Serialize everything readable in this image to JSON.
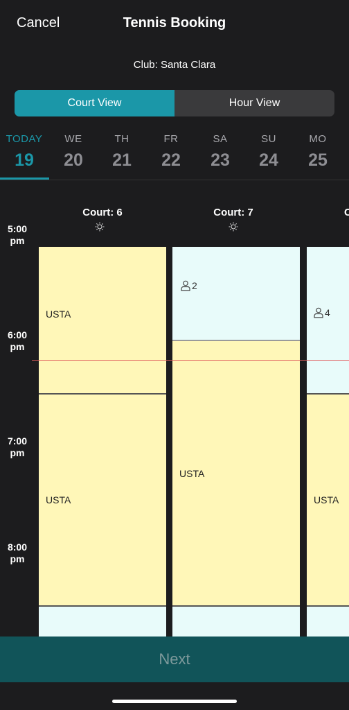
{
  "header": {
    "cancel_label": "Cancel",
    "title": "Tennis Booking",
    "club": "Club: Santa Clara"
  },
  "segment": {
    "court_view": "Court View",
    "hour_view": "Hour View",
    "selected": "Court View"
  },
  "days": [
    {
      "dow": "TODAY",
      "num": "19",
      "active": true
    },
    {
      "dow": "WE",
      "num": "20"
    },
    {
      "dow": "TH",
      "num": "21"
    },
    {
      "dow": "FR",
      "num": "22"
    },
    {
      "dow": "SA",
      "num": "23"
    },
    {
      "dow": "SU",
      "num": "24"
    },
    {
      "dow": "MO",
      "num": "25"
    }
  ],
  "times": [
    {
      "hour": "5:00",
      "ampm": "pm"
    },
    {
      "hour": "6:00",
      "ampm": "pm"
    },
    {
      "hour": "7:00",
      "ampm": "pm"
    },
    {
      "hour": "8:00",
      "ampm": "pm"
    }
  ],
  "courts": [
    {
      "label": "Court: 6",
      "blocks": [
        {
          "text": "USTA"
        },
        {
          "text": "USTA"
        }
      ]
    },
    {
      "label": "Court: 7",
      "blocks": [
        {
          "people": "2"
        },
        {
          "text": "USTA"
        }
      ]
    },
    {
      "label": "C",
      "blocks": [
        {
          "people": "4"
        },
        {
          "text": "USTA"
        }
      ]
    }
  ],
  "colors": {
    "accent": "#1b97a8",
    "booked": "#fff7b8",
    "available": "#e8fbfa",
    "now_line": "#e05b5b",
    "next_bar": "#115459"
  },
  "footer": {
    "next_label": "Next"
  }
}
